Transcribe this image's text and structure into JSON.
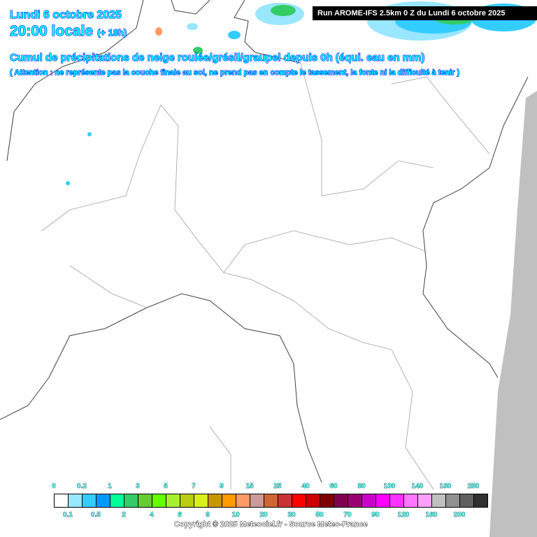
{
  "header": {
    "date": "Lundi 6 octobre 2025",
    "time": "20:00 locale",
    "lead": "(+ 18h)",
    "title": "Cumul de précipitations de neige roulée/grésil/graupel depuis 0h (équi. eau en mm)",
    "warning": "( Attention : ne représente pas la couche finale au sol, ne prend pas en compte le tassement, la fonte ni la difficulté à tenir )",
    "run": "Run AROME-IFS 2.5km 0 Z du Lundi 6 octobre 2025"
  },
  "legend": {
    "colors": [
      "#ffffff",
      "#99e6ff",
      "#33ccff",
      "#0099ff",
      "#00ff99",
      "#33cc66",
      "#66cc33",
      "#66ff00",
      "#a6f030",
      "#b8cc10",
      "#d9f01a",
      "#c89600",
      "#ff9900",
      "#ff9966",
      "#cc9999",
      "#cc6633",
      "#cc3333",
      "#ff0000",
      "#cc0000",
      "#800000",
      "#800050",
      "#990070",
      "#cc00cc",
      "#ff00ff",
      "#ff33ff",
      "#ff77ff",
      "#ffa0ff",
      "#c0c0c0",
      "#909090",
      "#606060",
      "#303030"
    ],
    "top_labels": [
      "0",
      "0.2",
      "1",
      "3",
      "5",
      "7",
      "9",
      "15",
      "25",
      "40",
      "60",
      "80",
      "100",
      "140",
      "180",
      "250"
    ],
    "bottom_labels": [
      "0.1",
      "0.5",
      "2",
      "4",
      "6",
      "8",
      "10",
      "20",
      "30",
      "50",
      "70",
      "90",
      "120",
      "160",
      "200"
    ]
  },
  "copyright": "Copyright © 2025 Meteociel.fr - Source Meteo-France"
}
